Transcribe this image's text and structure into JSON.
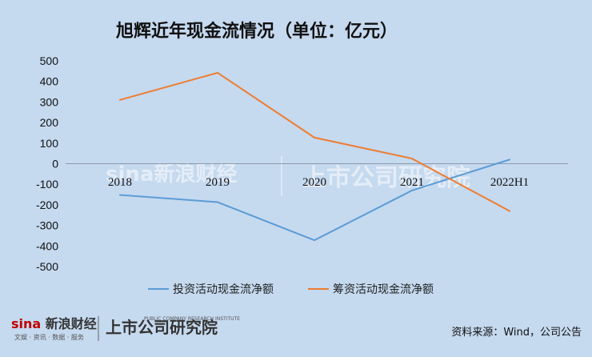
{
  "chart_data": {
    "type": "line",
    "title": "旭辉近年现金流情况（单位：亿元）",
    "categories": [
      "2018",
      "2019",
      "2020",
      "2021",
      "2022H1"
    ],
    "series": [
      {
        "name": "投资活动现金流净额",
        "color": "#5b9bd5",
        "values": [
          -152,
          -187,
          -372,
          -130,
          20
        ]
      },
      {
        "name": "筹资活动现金流净额",
        "color": "#ed7d31",
        "values": [
          310,
          442,
          127,
          25,
          -230
        ]
      }
    ],
    "ylim": [
      -500,
      500
    ],
    "yticks": [
      500,
      400,
      300,
      200,
      100,
      0,
      -100,
      -200,
      -300,
      -400,
      -500
    ],
    "grid": false,
    "legend": "bottom"
  },
  "source": "资料来源：Wind，公司公告",
  "branding": {
    "sina_logo": "sina新浪财经",
    "sina_sub": "文娱 · 资讯 · 数据 · 服务",
    "shangshi_logo": "上市公司研究院",
    "shangshi_sub": "PUBLIC COMPANY RESEARCH INSTITUTE"
  }
}
